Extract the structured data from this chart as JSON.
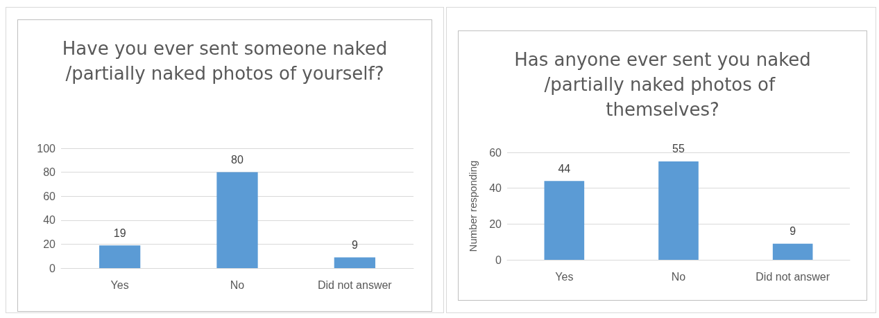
{
  "chart_data": [
    {
      "type": "bar",
      "title": "Have you ever sent someone naked/partially naked photos of yourself?",
      "categories": [
        "Yes",
        "No",
        "Did not answer"
      ],
      "values": [
        19,
        80,
        9
      ],
      "color": "#5b9bd5",
      "ylim": [
        0,
        100
      ],
      "yticks": [
        0,
        20,
        40,
        60,
        80,
        100
      ],
      "grid": "y",
      "data_labels": true
    },
    {
      "type": "bar",
      "title": "Has anyone ever sent you naked/partially naked photos of themselves?",
      "ylabel": "Number responding",
      "categories": [
        "Yes",
        "No",
        "Did not answer"
      ],
      "values": [
        44,
        55,
        9
      ],
      "color": "#5b9bd5",
      "ylim": [
        0,
        60
      ],
      "yticks": [
        0,
        20,
        40,
        60
      ],
      "grid": "y",
      "data_labels": true
    }
  ]
}
